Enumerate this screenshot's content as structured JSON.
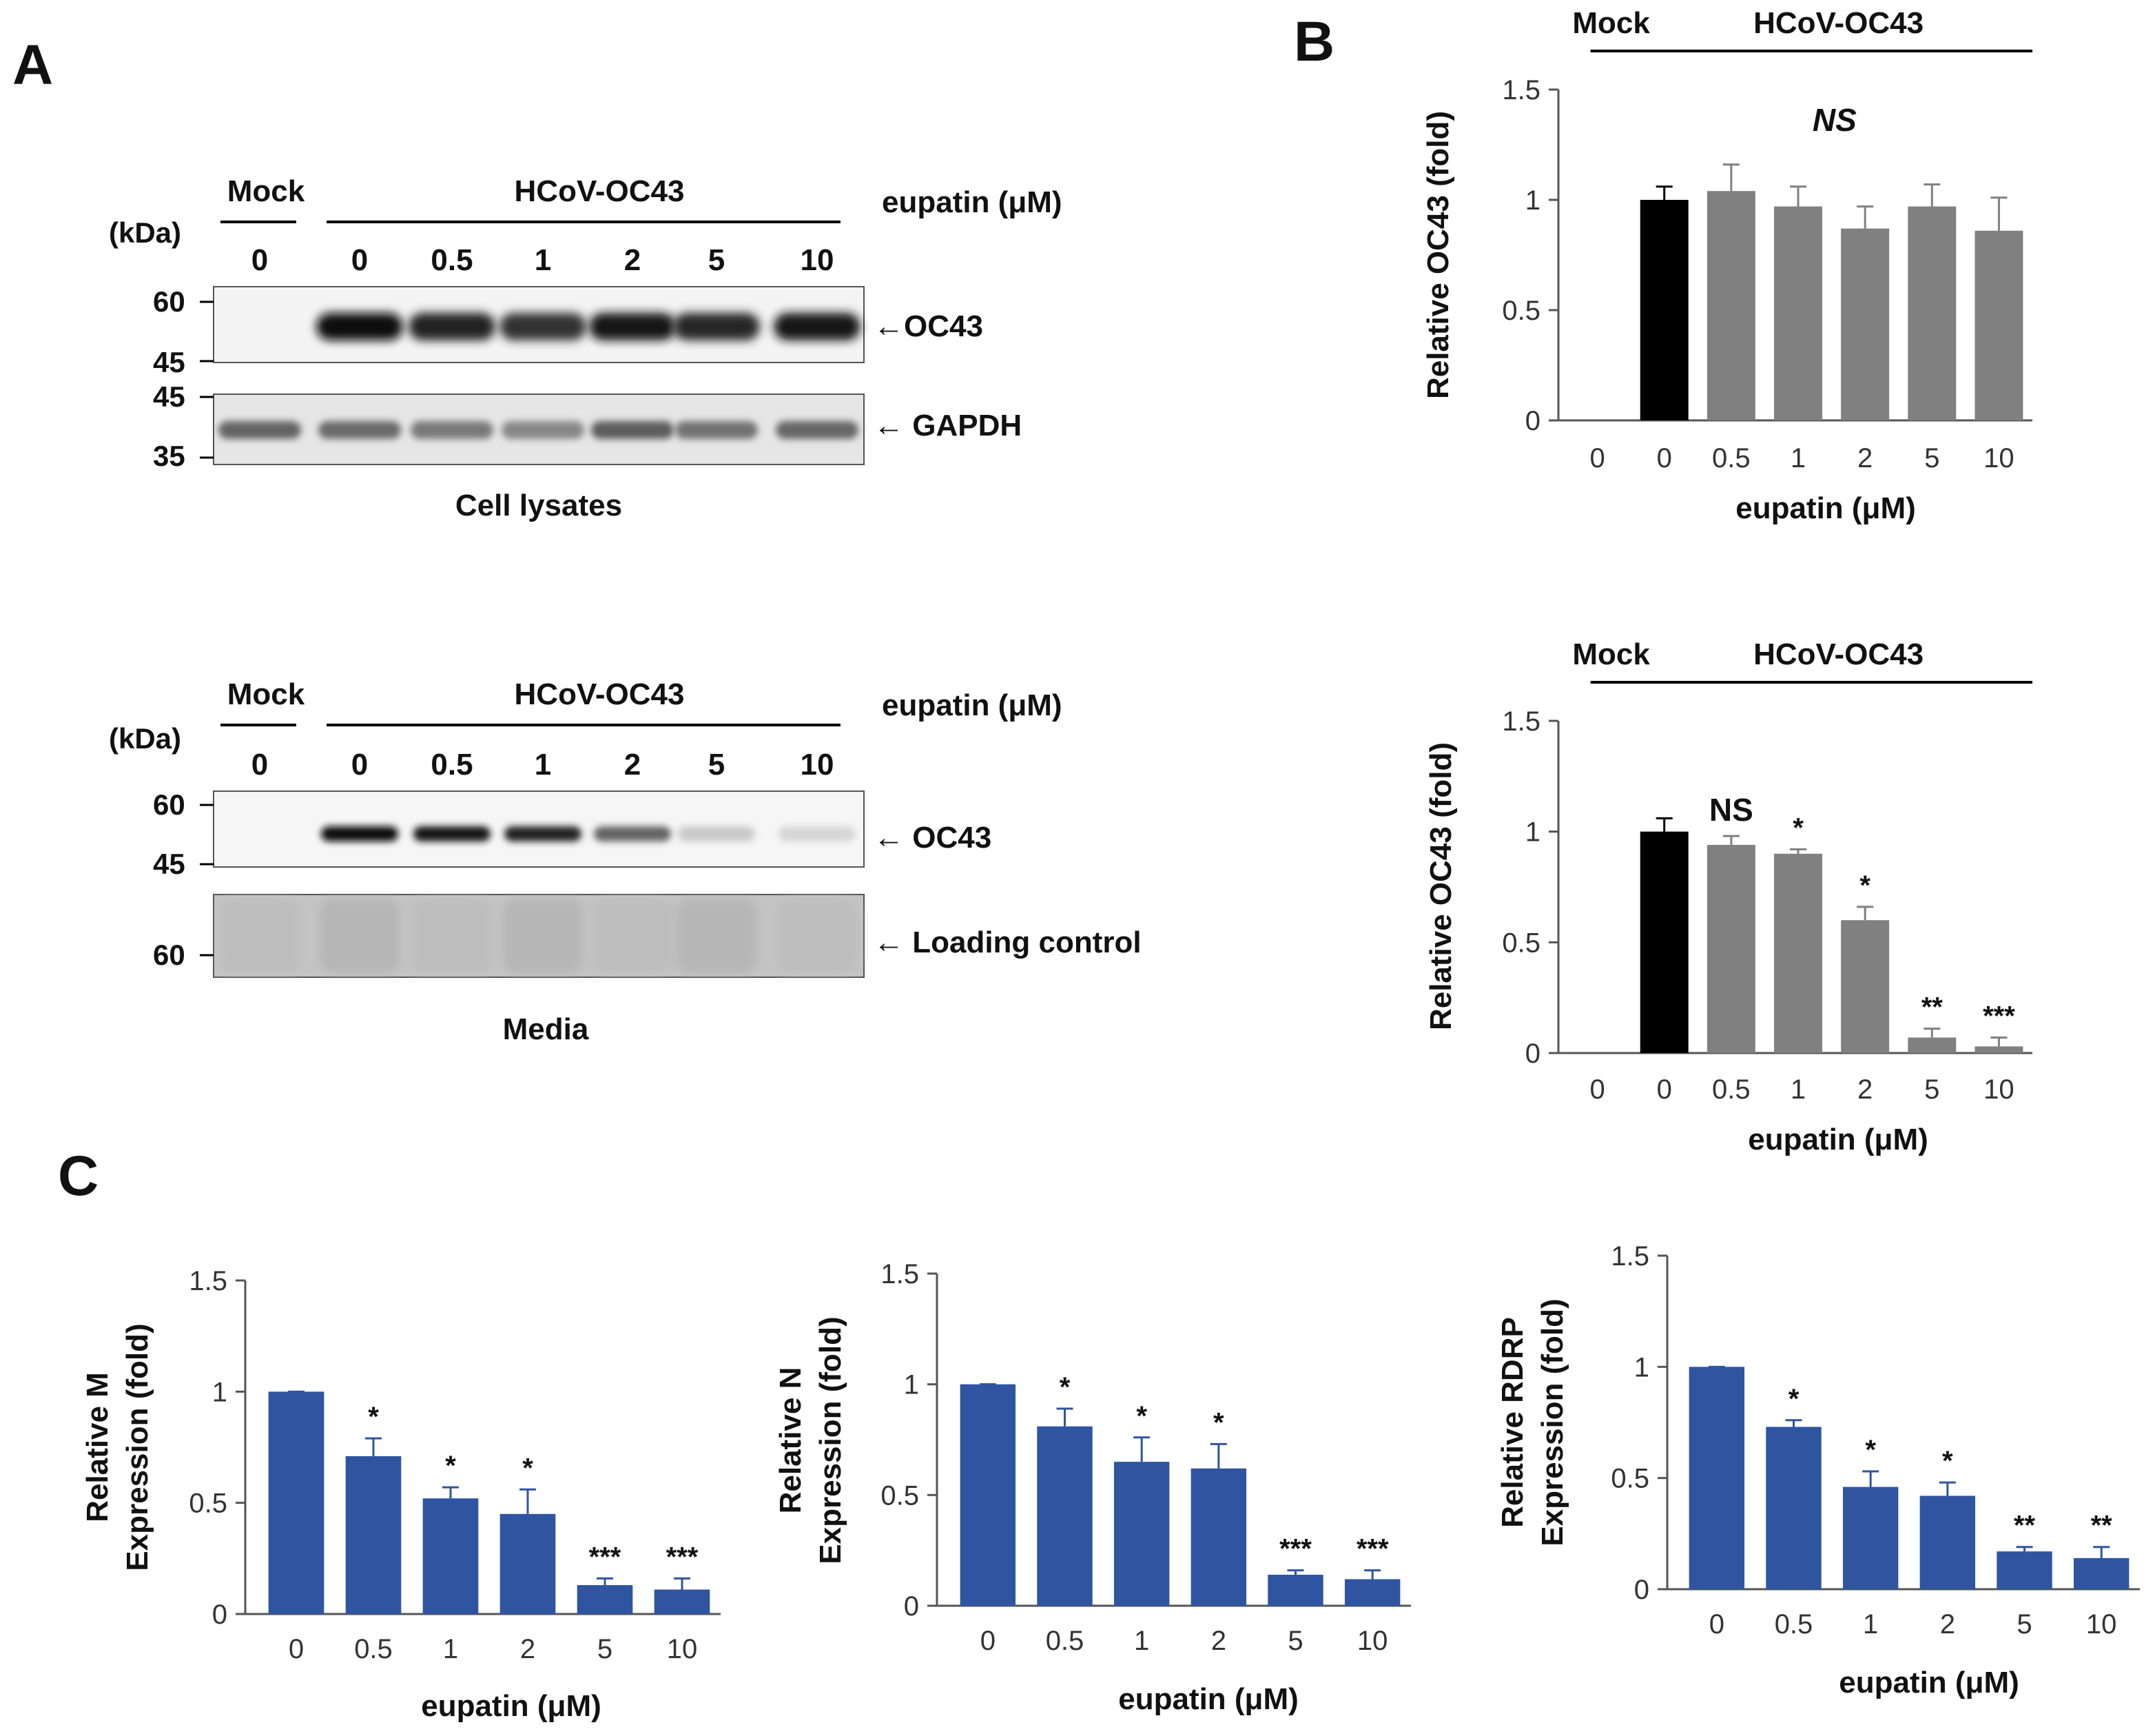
{
  "figure": {
    "panel_labels": [
      "A",
      "B",
      "C"
    ],
    "blots": [
      {
        "group_mock": "Mock",
        "group_virus": "HCoV-OC43",
        "treatment_label": "eupatin (μM)",
        "kda_label": "(kDa)",
        "lanes": [
          "0",
          "0",
          "0.5",
          "1",
          "2",
          "5",
          "10"
        ],
        "markers_top": [
          "60",
          "45"
        ],
        "markers_bottom": [
          "45",
          "35"
        ],
        "band_top_label": "←OC43",
        "band_bottom_label": "← GAPDH",
        "caption": "Cell lysates",
        "top_band_intensity": [
          0,
          1.0,
          0.88,
          0.82,
          0.93,
          0.86,
          0.95
        ],
        "bottom_band_intensity": [
          0.8,
          0.75,
          0.65,
          0.55,
          0.85,
          0.7,
          0.78
        ]
      },
      {
        "group_mock": "Mock",
        "group_virus": "HCoV-OC43",
        "treatment_label": "eupatin (μM)",
        "kda_label": "(kDa)",
        "lanes": [
          "0",
          "0",
          "0.5",
          "1",
          "2",
          "5",
          "10"
        ],
        "markers_top": [
          "60",
          "45"
        ],
        "markers_bottom": [
          "60"
        ],
        "band_top_label": "← OC43",
        "band_bottom_label": "← Loading control",
        "caption": "Media",
        "top_band_intensity": [
          0,
          1.0,
          0.95,
          0.9,
          0.6,
          0.15,
          0.1
        ]
      }
    ]
  },
  "chart_data": [
    {
      "type": "bar",
      "panel": "B",
      "group_mock": "Mock",
      "group_virus": "HCoV-OC43",
      "categories": [
        "0",
        "0",
        "0.5",
        "1",
        "2",
        "5",
        "10"
      ],
      "values": [
        0,
        1.0,
        1.04,
        0.97,
        0.87,
        0.97,
        0.86
      ],
      "errors": [
        0,
        0.06,
        0.12,
        0.09,
        0.1,
        0.1,
        0.15
      ],
      "colors": [
        "#000000",
        "#000000",
        "#808080",
        "#808080",
        "#808080",
        "#808080",
        "#808080"
      ],
      "annotations": [
        "",
        "",
        "",
        "",
        "",
        "",
        ""
      ],
      "group_note": "NS",
      "xlabel": "eupatin (μM)",
      "ylabel": "Relative OC43 (fold)",
      "ylim": [
        0,
        1.5
      ],
      "yticks": [
        "0",
        "0.5",
        "1",
        "1.5"
      ]
    },
    {
      "type": "bar",
      "panel": "B",
      "group_mock": "Mock",
      "group_virus": "HCoV-OC43",
      "categories": [
        "0",
        "0",
        "0.5",
        "1",
        "2",
        "5",
        "10"
      ],
      "values": [
        0,
        1.0,
        0.94,
        0.9,
        0.6,
        0.07,
        0.03
      ],
      "errors": [
        0,
        0.06,
        0.04,
        0.02,
        0.06,
        0.04,
        0.04
      ],
      "colors": [
        "#000000",
        "#000000",
        "#808080",
        "#808080",
        "#808080",
        "#808080",
        "#808080"
      ],
      "annotations": [
        "",
        "",
        "NS",
        "*",
        "*",
        "**",
        "***"
      ],
      "group_note": "",
      "xlabel": "eupatin (μM)",
      "ylabel": "Relative OC43 (fold)",
      "ylim": [
        0,
        1.5
      ],
      "yticks": [
        "0",
        "0.5",
        "1",
        "1.5"
      ]
    },
    {
      "type": "bar",
      "panel": "C",
      "categories": [
        "0",
        "0.5",
        "1",
        "2",
        "5",
        "10"
      ],
      "values": [
        1.0,
        0.71,
        0.52,
        0.45,
        0.13,
        0.11
      ],
      "errors": [
        0,
        0.08,
        0.05,
        0.11,
        0.03,
        0.05
      ],
      "color": "#2f55a0",
      "annotations": [
        "",
        "*",
        "*",
        "*",
        "***",
        "***"
      ],
      "xlabel": "eupatin (μM)",
      "ylabel": [
        "Relative M",
        "Expression (fold)"
      ],
      "ylim": [
        0,
        1.5
      ],
      "yticks": [
        "0",
        "0.5",
        "1",
        "1.5"
      ]
    },
    {
      "type": "bar",
      "panel": "C",
      "categories": [
        "0",
        "0.5",
        "1",
        "2",
        "5",
        "10"
      ],
      "values": [
        1.0,
        0.81,
        0.65,
        0.62,
        0.14,
        0.12
      ],
      "errors": [
        0,
        0.08,
        0.11,
        0.11,
        0.02,
        0.04
      ],
      "color": "#2f55a0",
      "annotations": [
        "",
        "*",
        "*",
        "*",
        "***",
        "***"
      ],
      "xlabel": "eupatin (μM)",
      "ylabel": [
        "Relative N",
        "Expression (fold)"
      ],
      "ylim": [
        0,
        1.5
      ],
      "yticks": [
        "0",
        "0.5",
        "1",
        "1.5"
      ]
    },
    {
      "type": "bar",
      "panel": "C",
      "categories": [
        "0",
        "0.5",
        "1",
        "2",
        "5",
        "10"
      ],
      "values": [
        1.0,
        0.73,
        0.46,
        0.42,
        0.17,
        0.14
      ],
      "errors": [
        0,
        0.03,
        0.07,
        0.06,
        0.02,
        0.05
      ],
      "color": "#2f55a0",
      "annotations": [
        "",
        "*",
        "*",
        "*",
        "**",
        "**"
      ],
      "xlabel": "eupatin (μM)",
      "ylabel": [
        "Relative RDRP",
        "Expression (fold)"
      ],
      "ylim": [
        0,
        1.5
      ],
      "yticks": [
        "0",
        "0.5",
        "1",
        "1.5"
      ]
    }
  ]
}
